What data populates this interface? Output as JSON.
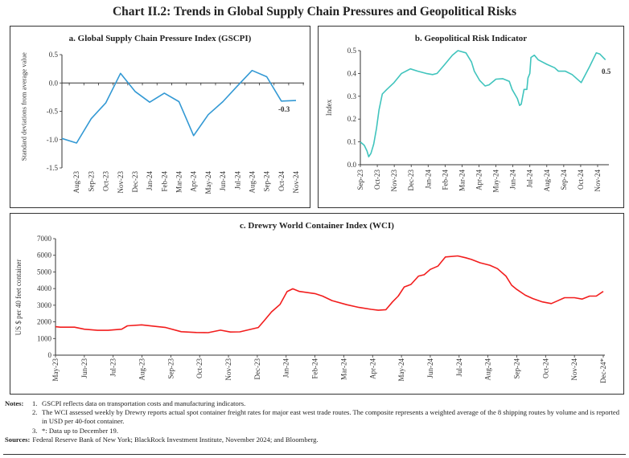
{
  "title": "Chart II.2: Trends in Global Supply Chain Pressures and Geopolitical Risks",
  "chart_data": [
    {
      "type": "line",
      "title": "a. Global Supply Chain Pressure Index (GSCPI)",
      "ylabel": "Standard deviations from average value",
      "ylim": [
        -1.5,
        0.5
      ],
      "yticks": [
        "0.5",
        "0.0",
        "-0.5",
        "-1.0",
        "-1.5"
      ],
      "ytick_values": [
        0.5,
        0.0,
        -0.5,
        -1.0,
        -1.5
      ],
      "categories": [
        "",
        "Aug-23",
        "Sep-23",
        "Oct-23",
        "Nov-23",
        "Dec-23",
        "Jan-24",
        "Feb-24",
        "Mar-24",
        "Apr-24",
        "May-24",
        "Jun-24",
        "Jul-24",
        "Aug-24",
        "Sep-24",
        "Oct-24",
        "Nov-24"
      ],
      "values": [
        -0.98,
        -1.06,
        -0.63,
        -0.35,
        0.17,
        -0.15,
        -0.34,
        -0.18,
        -0.33,
        -0.93,
        -0.56,
        -0.33,
        -0.05,
        0.22,
        0.11,
        -0.32,
        -0.31
      ],
      "data_label": "-0.3",
      "color": "#3399d4",
      "grid": false
    },
    {
      "type": "line",
      "title": "b. Geopolitical Risk Indicator",
      "ylabel": "Index",
      "ylim": [
        0.0,
        0.5
      ],
      "yticks": [
        "0.5",
        "0.4",
        "0.3",
        "0.2",
        "0.1",
        "0.0"
      ],
      "ytick_values": [
        0.5,
        0.4,
        0.3,
        0.2,
        0.1,
        0.0
      ],
      "xticks": [
        "Sep-23",
        "Oct-23",
        "Nov-23",
        "Dec-23",
        "Jan-24",
        "Feb-24",
        "Mar-24",
        "Apr-24",
        "May-24",
        "Jun-24",
        "Jul-24",
        "Aug-24",
        "Sep-24",
        "Oct-24",
        "Nov-24"
      ],
      "x": [
        "2023-09-01",
        "2023-09-08",
        "2023-09-13",
        "2023-09-16",
        "2023-09-20",
        "2023-09-25",
        "2023-09-30",
        "2023-10-04",
        "2023-10-10",
        "2023-10-18",
        "2023-10-31",
        "2023-11-14",
        "2023-11-30",
        "2023-12-13",
        "2023-12-28",
        "2024-01-09",
        "2024-01-17",
        "2024-01-31",
        "2024-02-14",
        "2024-02-24",
        "2024-03-08",
        "2024-03-18",
        "2024-03-23",
        "2024-04-02",
        "2024-04-12",
        "2024-04-19",
        "2024-05-01",
        "2024-05-13",
        "2024-05-25",
        "2024-05-30",
        "2024-06-09",
        "2024-06-13",
        "2024-06-16",
        "2024-06-21",
        "2024-06-26",
        "2024-06-28",
        "2024-07-01",
        "2024-07-03",
        "2024-07-09",
        "2024-07-16",
        "2024-08-01",
        "2024-08-15",
        "2024-08-22",
        "2024-09-04",
        "2024-09-16",
        "2024-10-02",
        "2024-10-17",
        "2024-10-29",
        "2024-11-05",
        "2024-11-15"
      ],
      "values": [
        0.1,
        0.085,
        0.06,
        0.035,
        0.05,
        0.09,
        0.16,
        0.24,
        0.31,
        0.33,
        0.36,
        0.4,
        0.42,
        0.41,
        0.4,
        0.395,
        0.4,
        0.44,
        0.48,
        0.5,
        0.49,
        0.45,
        0.41,
        0.37,
        0.345,
        0.35,
        0.375,
        0.377,
        0.365,
        0.33,
        0.29,
        0.26,
        0.265,
        0.33,
        0.33,
        0.38,
        0.4,
        0.47,
        0.48,
        0.46,
        0.44,
        0.425,
        0.41,
        0.41,
        0.395,
        0.36,
        0.43,
        0.49,
        0.485,
        0.46
      ],
      "data_label": "0.5",
      "color": "#40c4bd",
      "grid": false
    },
    {
      "type": "line",
      "title": "c. Drewry World Container Index (WCI)",
      "ylabel": "US $ per 40 feet container",
      "ylim": [
        0,
        7000
      ],
      "yticks": [
        "7000",
        "6000",
        "5000",
        "4000",
        "3000",
        "2000",
        "1000",
        "0"
      ],
      "ytick_values": [
        7000,
        6000,
        5000,
        4000,
        3000,
        2000,
        1000,
        0
      ],
      "xticks": [
        "May-23",
        "Jun-23",
        "Jul-23",
        "Aug-23",
        "Sep-23",
        "Oct-23",
        "Nov-23",
        "Dec-23",
        "Jan-24",
        "Feb-24",
        "Mar-24",
        "Apr-24",
        "May-24",
        "Jun-24",
        "Jul-24",
        "Aug-24",
        "Sep-24",
        "Oct-24",
        "Nov-24",
        "Dec-24*"
      ],
      "x": [
        "2023-05-01",
        "2023-05-06",
        "2023-05-21",
        "2023-06-01",
        "2023-06-15",
        "2023-06-26",
        "2023-07-10",
        "2023-07-16",
        "2023-07-31",
        "2023-08-17",
        "2023-08-26",
        "2023-09-12",
        "2023-09-28",
        "2023-10-10",
        "2023-10-23",
        "2023-11-03",
        "2023-11-13",
        "2023-12-02",
        "2023-12-08",
        "2023-12-16",
        "2023-12-25",
        "2024-01-02",
        "2024-01-08",
        "2024-01-15",
        "2024-02-01",
        "2024-02-09",
        "2024-02-19",
        "2024-03-04",
        "2024-03-17",
        "2024-03-30",
        "2024-04-07",
        "2024-04-15",
        "2024-04-22",
        "2024-04-28",
        "2024-05-04",
        "2024-05-11",
        "2024-05-19",
        "2024-05-25",
        "2024-06-01",
        "2024-06-09",
        "2024-06-17",
        "2024-06-30",
        "2024-07-08",
        "2024-07-14",
        "2024-07-23",
        "2024-08-03",
        "2024-08-11",
        "2024-08-20",
        "2024-08-26",
        "2024-09-01",
        "2024-09-10",
        "2024-09-18",
        "2024-09-28",
        "2024-10-07",
        "2024-10-13",
        "2024-10-21",
        "2024-11-01",
        "2024-11-09",
        "2024-11-17",
        "2024-11-24",
        "2024-12-01"
      ],
      "values": [
        1710,
        1680,
        1680,
        1560,
        1490,
        1490,
        1560,
        1760,
        1820,
        1720,
        1660,
        1410,
        1360,
        1350,
        1500,
        1390,
        1400,
        1660,
        2050,
        2600,
        3050,
        3820,
        3990,
        3830,
        3700,
        3550,
        3280,
        3030,
        2870,
        2750,
        2700,
        2730,
        3200,
        3550,
        4100,
        4250,
        4750,
        4830,
        5150,
        5350,
        5900,
        5960,
        5850,
        5750,
        5550,
        5400,
        5200,
        4750,
        4200,
        3950,
        3600,
        3400,
        3200,
        3100,
        3250,
        3450,
        3450,
        3370,
        3550,
        3550,
        3830
      ],
      "color": "#f21d1d",
      "grid": false
    }
  ],
  "notes": {
    "label": "Notes:",
    "items": [
      {
        "num": "1.",
        "text": "GSCPI reflects data on transportation costs and manufacturing indicators."
      },
      {
        "num": "2.",
        "text": "The WCI assessed weekly by Drewry reports actual spot container freight rates for major east west trade routes. The composite represents a weighted average of the 8 shipping routes by volume and is reported in USD per 40-foot container."
      },
      {
        "num": "3.",
        "text": "*: Data up to December 19."
      }
    ],
    "sources_label": "Sources:",
    "sources_text": "Federal Reserve Bank of New York; BlackRock Investment Institute, November 2024; and Bloomberg."
  }
}
